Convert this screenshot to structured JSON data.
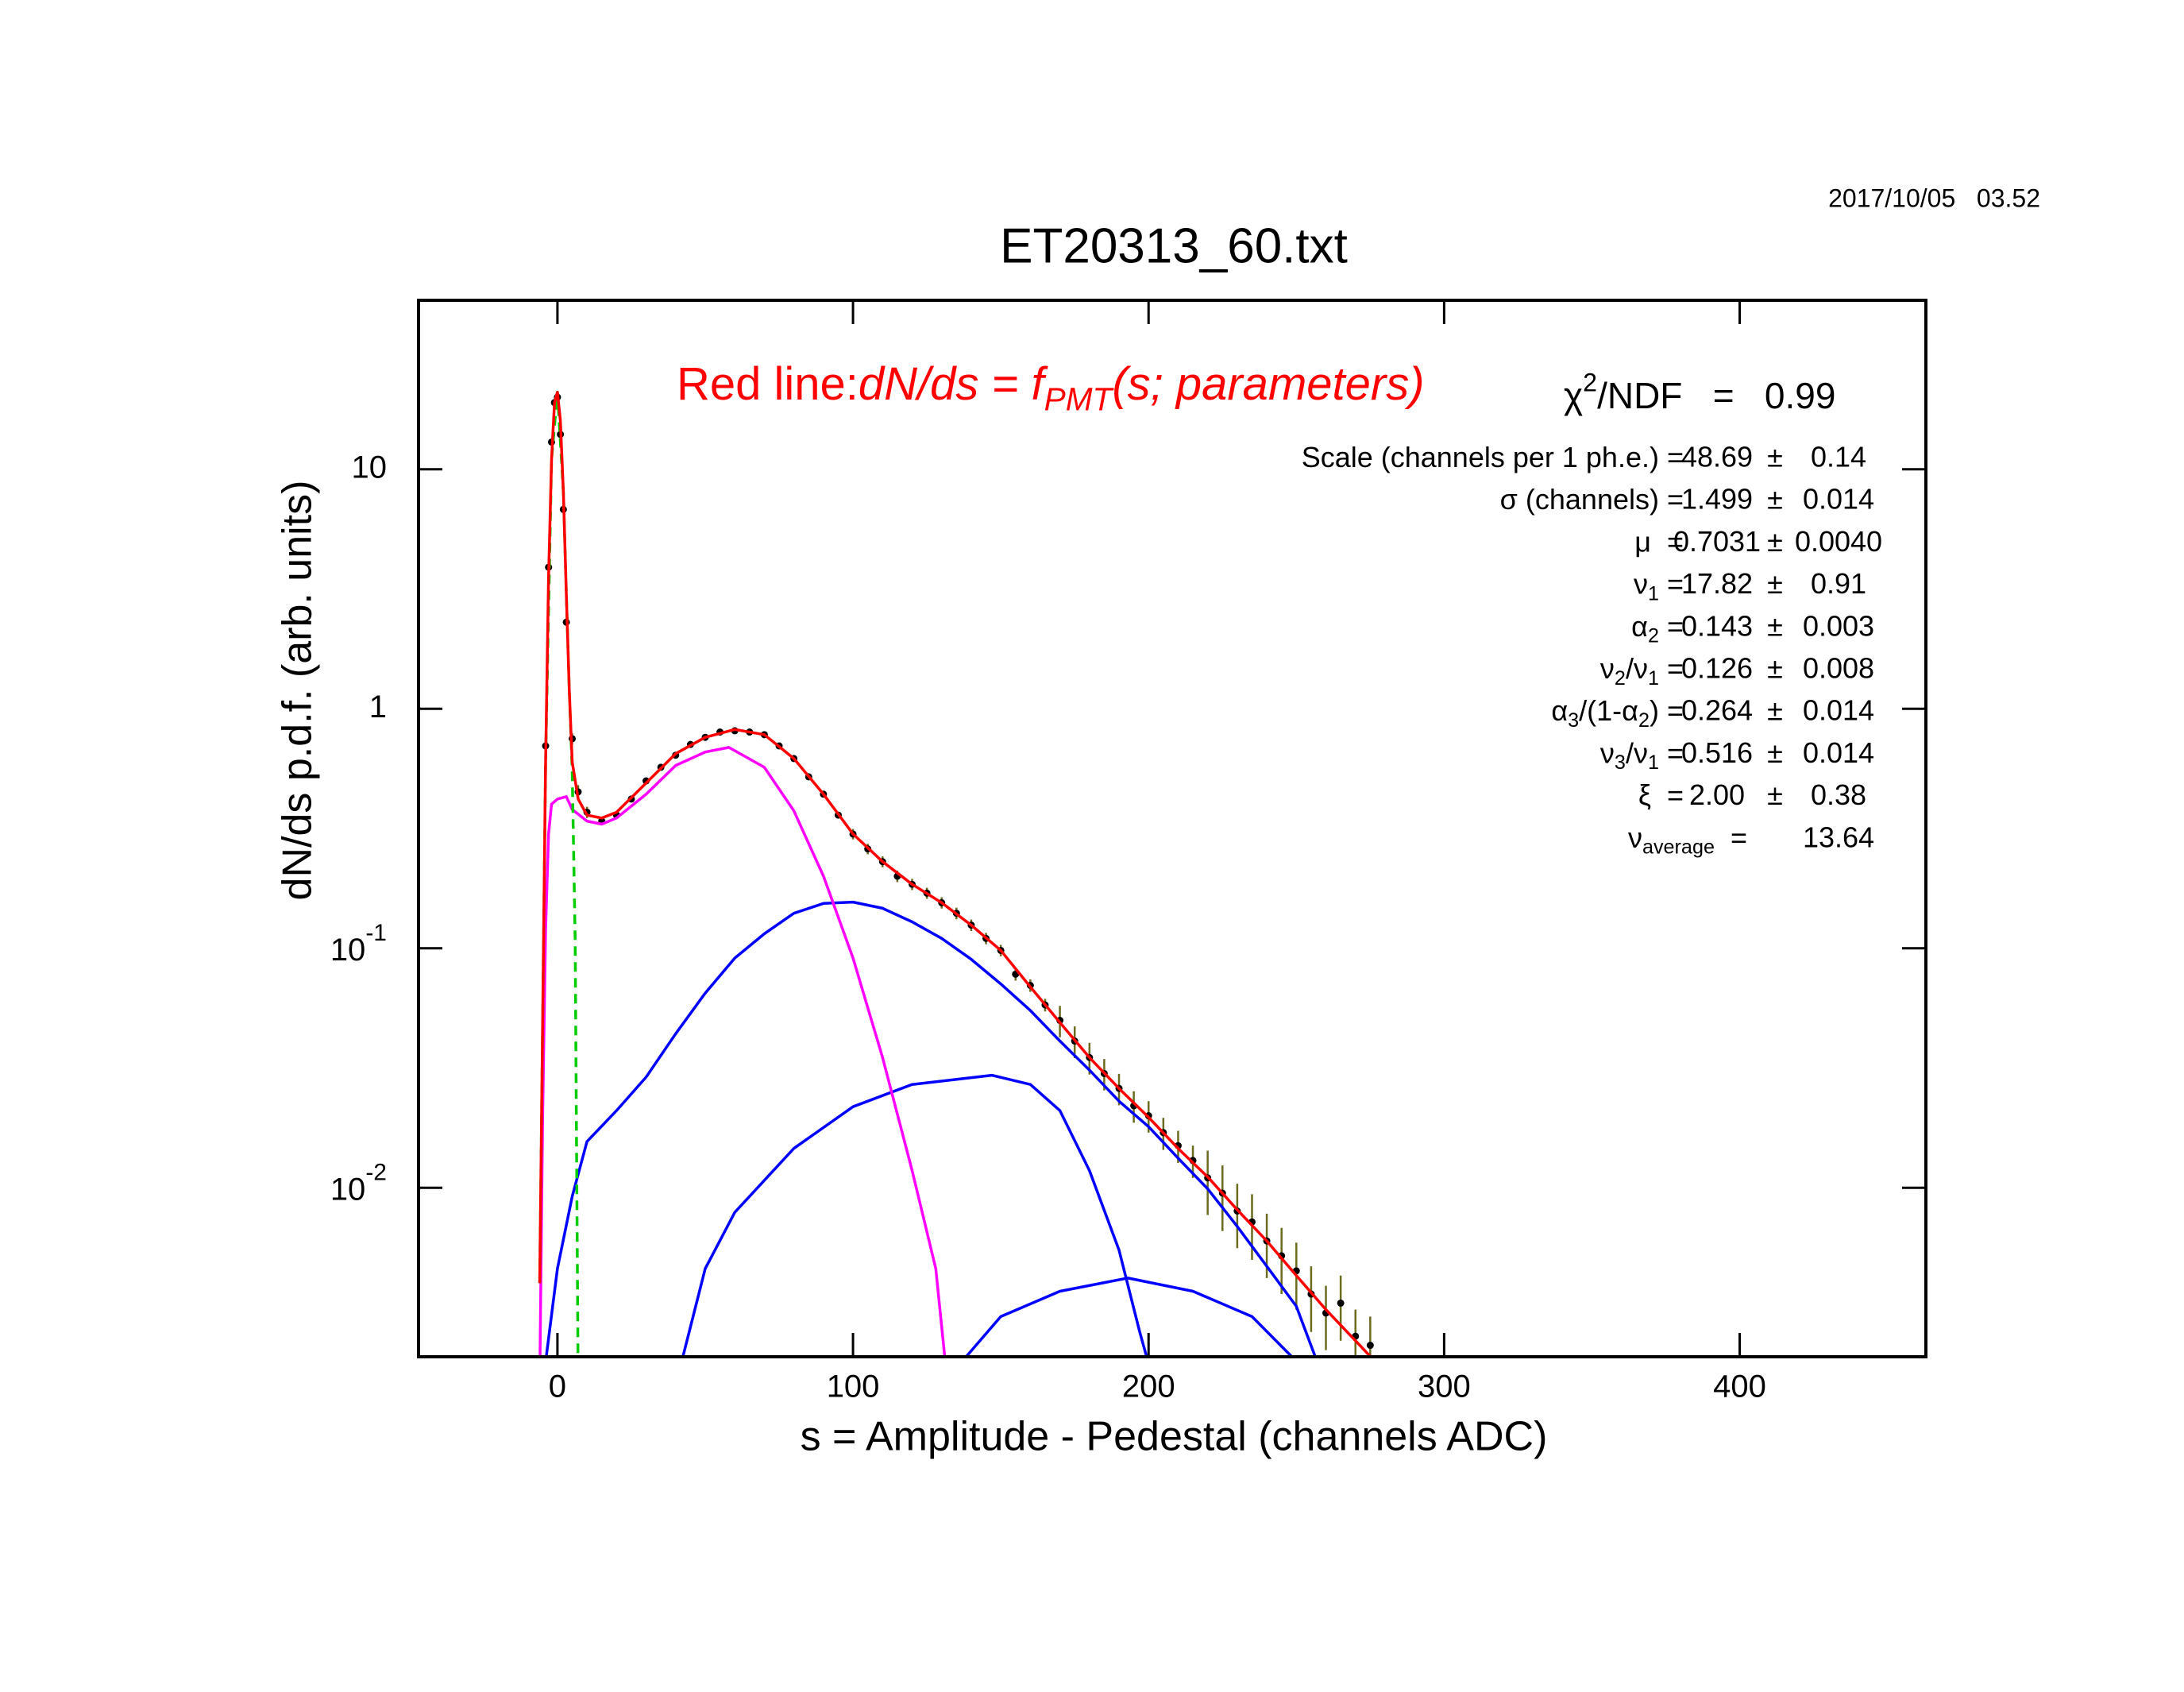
{
  "chart_data": {
    "type": "line",
    "title": "ET20313_60.txt",
    "timestamp": "2017/10/05   03.52",
    "x_label": "s = Amplitude - Pedestal (channels ADC)",
    "y_label": "dN/ds p.d.f. (arb. units)",
    "log_y": true,
    "xlim": [
      -47,
      463
    ],
    "ylim": [
      0.00197,
      50.8
    ],
    "xticks": [
      0,
      100,
      200,
      300,
      400
    ],
    "yticks": [
      {
        "value": 0.01,
        "label": "10",
        "exponent": "-2"
      },
      {
        "value": 0.1,
        "label": "10",
        "exponent": "-1"
      },
      1,
      10
    ],
    "annotation": {
      "color": "#ff0000",
      "parts": [
        {
          "text": "Red line:"
        },
        {
          "text": "dN/ds = f",
          "italic": true
        },
        {
          "sub": "PMT",
          "italic": true
        },
        {
          "text": "(s; parameters)",
          "italic": true
        }
      ]
    },
    "chi2": {
      "parts": [
        {
          "text": "χ"
        },
        {
          "sup": "2"
        },
        {
          "text": "/NDF   =   0.99"
        }
      ]
    },
    "fit_box": {
      "plus_minus": "±",
      "rows": [
        {
          "label": [
            {
              "text": "Scale (channels per 1 ph.e.) ="
            }
          ],
          "value": "48.69",
          "error": "0.14"
        },
        {
          "label": [
            {
              "text": "σ (channels) ="
            }
          ],
          "value": "1.499",
          "error": "0.014"
        },
        {
          "label": [
            {
              "text": "μ  ="
            }
          ],
          "value": "0.7031",
          "error": "0.0040"
        },
        {
          "label": [
            {
              "text": "ν"
            },
            {
              "sub": "1"
            },
            {
              "text": " ="
            }
          ],
          "value": "17.82",
          "error": "0.91"
        },
        {
          "label": [
            {
              "text": "α"
            },
            {
              "sub": "2"
            },
            {
              "text": " ="
            }
          ],
          "value": "0.143",
          "error": "0.003"
        },
        {
          "label": [
            {
              "text": "ν"
            },
            {
              "sub": "2"
            },
            {
              "text": "/ν"
            },
            {
              "sub": "1"
            },
            {
              "text": " ="
            }
          ],
          "value": "0.126",
          "error": "0.008"
        },
        {
          "label": [
            {
              "text": "α"
            },
            {
              "sub": "3"
            },
            {
              "text": "/(1-α"
            },
            {
              "sub": "2"
            },
            {
              "text": ") ="
            }
          ],
          "value": "0.264",
          "error": "0.014"
        },
        {
          "label": [
            {
              "text": "ν"
            },
            {
              "sub": "3"
            },
            {
              "text": "/ν"
            },
            {
              "sub": "1"
            },
            {
              "text": " ="
            }
          ],
          "value": "0.516",
          "error": "0.014"
        },
        {
          "label": [
            {
              "text": "ξ  ="
            }
          ],
          "value": "2.00",
          "error": "0.38"
        },
        {
          "label": [
            {
              "text": "ν"
            },
            {
              "sub": "average"
            },
            {
              "text": "  ="
            }
          ],
          "value": "13.64"
        }
      ]
    },
    "points": {
      "color": "#000000",
      "error_color": "#6b6b1f",
      "x": [
        -4,
        -3,
        -2,
        -1,
        0,
        1,
        2,
        3,
        5,
        7,
        10,
        15,
        20,
        25,
        30,
        35,
        40,
        45,
        50,
        55,
        60,
        65,
        70,
        75,
        80,
        85,
        90,
        95,
        100,
        105,
        110,
        115,
        120,
        125,
        130,
        135,
        140,
        145,
        150,
        155,
        160,
        165,
        170,
        175,
        180,
        185,
        190,
        195,
        200,
        205,
        210,
        215,
        220,
        225,
        230,
        235,
        240,
        245,
        250,
        255,
        260,
        265,
        270,
        275
      ],
      "values": [
        0.7,
        3.9,
        13,
        19,
        20,
        14,
        6.8,
        2.3,
        0.75,
        0.45,
        0.37,
        0.34,
        0.36,
        0.42,
        0.5,
        0.57,
        0.64,
        0.71,
        0.76,
        0.8,
        0.81,
        0.8,
        0.78,
        0.7,
        0.62,
        0.52,
        0.44,
        0.36,
        0.3,
        0.26,
        0.23,
        0.2,
        0.185,
        0.17,
        0.155,
        0.14,
        0.125,
        0.11,
        0.098,
        0.078,
        0.07,
        0.058,
        0.05,
        0.041,
        0.035,
        0.03,
        0.026,
        0.022,
        0.02,
        0.017,
        0.015,
        0.013,
        0.011,
        0.0095,
        0.008,
        0.0072,
        0.006,
        0.0052,
        0.0045,
        0.0036,
        0.003,
        0.0033,
        0.0024,
        0.0022
      ],
      "errors": [
        0.05,
        0.1,
        0.2,
        0.25,
        0.25,
        0.2,
        0.15,
        0.08,
        0.04,
        0.03,
        0.02,
        0.01,
        0.011,
        0.013,
        0.015,
        0.017,
        0.019,
        0.021,
        0.023,
        0.024,
        0.024,
        0.024,
        0.023,
        0.019,
        0.016,
        0.013,
        0.011,
        0.009,
        0.015,
        0.013,
        0.012,
        0.011,
        0.01,
        0.009,
        0.0084,
        0.0078,
        0.0069,
        0.006,
        0.0054,
        0.0047,
        0.0042,
        0.0035,
        0.0075,
        0.0062,
        0.0053,
        0.0045,
        0.0039,
        0.0033,
        0.003,
        0.0026,
        0.0023,
        0.002,
        0.0033,
        0.0029,
        0.0024,
        0.0022,
        0.0018,
        0.0016,
        0.0014,
        0.0011,
        0.0009,
        0.001,
        0.0007,
        0.0007
      ]
    },
    "curves": [
      {
        "color": "#0000ff",
        "x": [
          -5,
          0,
          5,
          10,
          20,
          30,
          40,
          50,
          60,
          70,
          80,
          90,
          100,
          110,
          120,
          130,
          140,
          150,
          160,
          170,
          180,
          190,
          200,
          210,
          220,
          230,
          240,
          250,
          260
        ],
        "values": [
          0.0015,
          0.0046,
          0.0092,
          0.0156,
          0.021,
          0.029,
          0.044,
          0.065,
          0.091,
          0.115,
          0.14,
          0.154,
          0.156,
          0.147,
          0.129,
          0.11,
          0.09,
          0.071,
          0.055,
          0.041,
          0.031,
          0.023,
          0.018,
          0.0133,
          0.0099,
          0.0069,
          0.0047,
          0.0032,
          0.0015
        ]
      },
      {
        "color": "#0000ff",
        "x": [
          40,
          50,
          60,
          80,
          100,
          120,
          147,
          160,
          170,
          180,
          190,
          197,
          202
        ],
        "values": [
          0.0015,
          0.0046,
          0.0079,
          0.0146,
          0.0218,
          0.027,
          0.0295,
          0.027,
          0.021,
          0.0118,
          0.0055,
          0.0025,
          0.0015
        ]
      },
      {
        "color": "#0000ff",
        "x": [
          130,
          150,
          170,
          193,
          215,
          235,
          258
        ],
        "values": [
          0.0015,
          0.0029,
          0.0037,
          0.0042,
          0.0037,
          0.0029,
          0.0015
        ]
      },
      {
        "color": "#ff00ff",
        "x": [
          -6,
          -5,
          -4,
          -3,
          -2,
          0,
          3,
          5,
          10,
          15,
          20,
          30,
          40,
          50,
          58,
          70,
          80,
          90,
          100,
          110,
          120,
          128,
          132
        ],
        "values": [
          0.0015,
          0.02,
          0.12,
          0.3,
          0.4,
          0.42,
          0.43,
          0.38,
          0.34,
          0.33,
          0.35,
          0.44,
          0.58,
          0.66,
          0.69,
          0.57,
          0.375,
          0.2,
          0.091,
          0.035,
          0.0118,
          0.0046,
          0.0015
        ]
      },
      {
        "color": "#00cc00",
        "dashed": true,
        "x": [
          -6,
          -4,
          -2,
          0,
          2,
          3,
          4,
          5,
          6,
          7
        ],
        "values": [
          0.004,
          0.6,
          11,
          21,
          8,
          3,
          1.2,
          0.55,
          0.11,
          0.0015
        ]
      },
      {
        "color": "#ff0000",
        "x": [
          -6,
          -5,
          -4,
          -3,
          -2,
          -1,
          0,
          1,
          2,
          3,
          4,
          5,
          7,
          10,
          15,
          20,
          30,
          40,
          50,
          60,
          70,
          80,
          90,
          100,
          110,
          120,
          130,
          140,
          150,
          160,
          170,
          180,
          190,
          200,
          210,
          220,
          230,
          240,
          250,
          260,
          270,
          280
        ],
        "values": [
          0.004,
          0.05,
          0.6,
          3.5,
          11,
          19,
          21,
          16,
          8,
          3,
          1.2,
          0.6,
          0.42,
          0.36,
          0.35,
          0.37,
          0.49,
          0.65,
          0.76,
          0.82,
          0.78,
          0.62,
          0.44,
          0.3,
          0.23,
          0.185,
          0.155,
          0.125,
          0.098,
          0.069,
          0.049,
          0.035,
          0.026,
          0.0197,
          0.0146,
          0.0111,
          0.0081,
          0.006,
          0.0043,
          0.0031,
          0.0023,
          0.0017
        ]
      }
    ]
  }
}
